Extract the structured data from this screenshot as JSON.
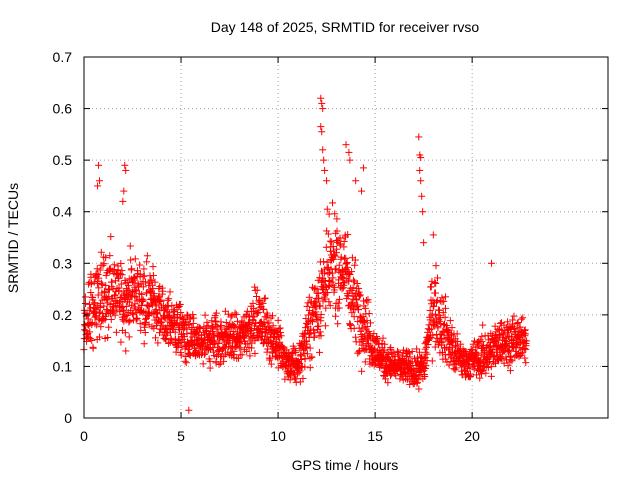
{
  "chart_data": {
    "type": "scatter",
    "title": "Day 148 of 2025, SRMTID for receiver rvso",
    "xlabel": "GPS time / hours",
    "ylabel": "SRMTID / TECUs",
    "xlim": [
      0,
      27
    ],
    "ylim": [
      0,
      0.7
    ],
    "xticks": [
      0,
      5,
      10,
      15,
      20
    ],
    "yticks": [
      0,
      0.1,
      0.2,
      0.3,
      0.4,
      0.5,
      0.6,
      0.7
    ],
    "xtick_labels": [
      "0",
      "5",
      "10",
      "15",
      "20"
    ],
    "ytick_labels": [
      "0",
      "0.1",
      "0.2",
      "0.3",
      "0.4",
      "0.5",
      "0.6",
      "0.7"
    ],
    "grid": true,
    "series": [
      {
        "name": "SRMTID",
        "color": "#ff0000",
        "marker": "plus",
        "x_start": 0.0,
        "x_end": 22.8,
        "profile_x": [
          0.0,
          0.5,
          1.0,
          1.5,
          2.0,
          2.5,
          3.0,
          3.5,
          4.0,
          4.5,
          5.0,
          5.5,
          6.0,
          6.5,
          7.0,
          7.5,
          8.0,
          8.5,
          9.0,
          9.5,
          10.0,
          10.5,
          11.0,
          11.5,
          12.0,
          12.5,
          13.0,
          13.5,
          14.0,
          14.5,
          15.0,
          15.5,
          16.0,
          16.5,
          17.0,
          17.5,
          18.0,
          18.5,
          19.0,
          19.5,
          20.0,
          20.5,
          21.0,
          21.5,
          22.0,
          22.5,
          22.8
        ],
        "profile_median": [
          0.18,
          0.21,
          0.25,
          0.24,
          0.23,
          0.24,
          0.24,
          0.23,
          0.2,
          0.18,
          0.17,
          0.15,
          0.14,
          0.15,
          0.15,
          0.16,
          0.15,
          0.18,
          0.19,
          0.17,
          0.14,
          0.1,
          0.1,
          0.16,
          0.22,
          0.27,
          0.3,
          0.28,
          0.22,
          0.18,
          0.13,
          0.11,
          0.1,
          0.1,
          0.09,
          0.1,
          0.22,
          0.18,
          0.13,
          0.11,
          0.11,
          0.12,
          0.13,
          0.15,
          0.15,
          0.15,
          0.14
        ],
        "profile_spread": [
          0.05,
          0.07,
          0.08,
          0.07,
          0.06,
          0.06,
          0.06,
          0.06,
          0.05,
          0.05,
          0.05,
          0.04,
          0.04,
          0.05,
          0.05,
          0.04,
          0.04,
          0.05,
          0.05,
          0.05,
          0.04,
          0.03,
          0.03,
          0.05,
          0.08,
          0.09,
          0.09,
          0.08,
          0.07,
          0.06,
          0.04,
          0.03,
          0.03,
          0.03,
          0.03,
          0.03,
          0.07,
          0.06,
          0.04,
          0.03,
          0.03,
          0.04,
          0.04,
          0.04,
          0.04,
          0.04,
          0.03
        ],
        "points_per_hour": 95,
        "outliers": [
          {
            "x": 0.75,
            "y": 0.49
          },
          {
            "x": 0.8,
            "y": 0.46
          },
          {
            "x": 0.7,
            "y": 0.45
          },
          {
            "x": 2.1,
            "y": 0.49
          },
          {
            "x": 2.15,
            "y": 0.48
          },
          {
            "x": 2.05,
            "y": 0.44
          },
          {
            "x": 2.0,
            "y": 0.42
          },
          {
            "x": 5.4,
            "y": 0.015
          },
          {
            "x": 12.2,
            "y": 0.62
          },
          {
            "x": 12.25,
            "y": 0.61
          },
          {
            "x": 12.3,
            "y": 0.6
          },
          {
            "x": 12.2,
            "y": 0.565
          },
          {
            "x": 12.25,
            "y": 0.555
          },
          {
            "x": 12.3,
            "y": 0.52
          },
          {
            "x": 12.35,
            "y": 0.5
          },
          {
            "x": 12.4,
            "y": 0.48
          },
          {
            "x": 12.5,
            "y": 0.46
          },
          {
            "x": 13.5,
            "y": 0.53
          },
          {
            "x": 13.65,
            "y": 0.515
          },
          {
            "x": 13.7,
            "y": 0.5
          },
          {
            "x": 14.0,
            "y": 0.46
          },
          {
            "x": 14.4,
            "y": 0.485
          },
          {
            "x": 14.3,
            "y": 0.44
          },
          {
            "x": 17.25,
            "y": 0.545
          },
          {
            "x": 17.3,
            "y": 0.51
          },
          {
            "x": 17.35,
            "y": 0.505
          },
          {
            "x": 17.3,
            "y": 0.48
          },
          {
            "x": 17.35,
            "y": 0.46
          },
          {
            "x": 17.4,
            "y": 0.43
          },
          {
            "x": 17.45,
            "y": 0.4
          },
          {
            "x": 17.5,
            "y": 0.34
          },
          {
            "x": 18.0,
            "y": 0.355
          },
          {
            "x": 21.0,
            "y": 0.3
          }
        ]
      }
    ]
  }
}
